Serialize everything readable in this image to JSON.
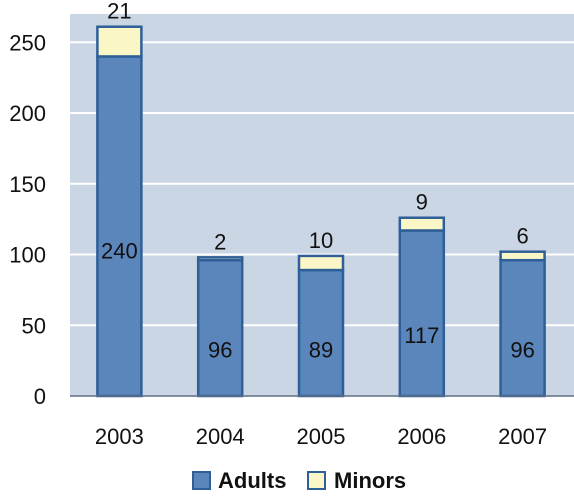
{
  "chart_data": {
    "type": "bar",
    "stacked": true,
    "categories": [
      "2003",
      "2004",
      "2005",
      "2006",
      "2007"
    ],
    "series": [
      {
        "name": "Adults",
        "values": [
          240,
          96,
          89,
          117,
          96
        ],
        "color": "#5b86bb",
        "edge_color": "#2f5f98"
      },
      {
        "name": "Minors",
        "values": [
          21,
          2,
          10,
          9,
          6
        ],
        "color": "#fbf6c6",
        "edge_color": "#2f5f98"
      }
    ],
    "ylim": [
      0,
      270
    ],
    "yticks": [
      0,
      50,
      100,
      150,
      200,
      250
    ],
    "grid": true,
    "legend_position": "bottom",
    "plot_background": "#cbd6e4",
    "gridline_color": "#ffffff",
    "axis_color": "#5f6f86"
  },
  "legend": {
    "items": [
      {
        "label": "Adults",
        "color": "#5b86bb",
        "edge_color": "#2f5f98"
      },
      {
        "label": "Minors",
        "color": "#fbf6c6",
        "edge_color": "#2f5f98"
      }
    ]
  }
}
